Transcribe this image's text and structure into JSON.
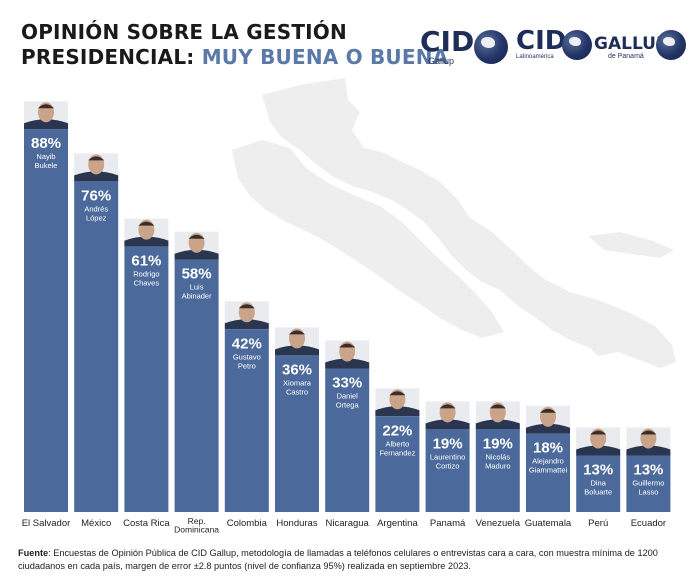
{
  "title": {
    "line1": "OPINIÓN SOBRE LA GESTIÓN",
    "line2_prefix": "PRESIDENCIAL:",
    "line2_accent": "MUY BUENA O BUENA"
  },
  "logos": {
    "cid_gallup": {
      "word": "CID",
      "sub": "Gallup"
    },
    "cid_latinoamerica": {
      "word": "CID",
      "sub": "Latinoamérica"
    },
    "gallup_panama": {
      "word": "GALLUP",
      "sub": "de Panamá"
    }
  },
  "colors": {
    "bar": "#4b6a9b",
    "bar_text": "#ffffff",
    "accent": "#5a79a8",
    "map": "#eeeeee",
    "axis_text": "#222222"
  },
  "chart_data": {
    "type": "bar",
    "categories": [
      "El Salvador",
      "México",
      "Costa Rica",
      "Rep. Dominicana",
      "Colombia",
      "Honduras",
      "Nicaragua",
      "Argentina",
      "Panamá",
      "Venezuela",
      "Guatemala",
      "Perú",
      "Ecuador"
    ],
    "values": [
      88,
      76,
      61,
      58,
      42,
      36,
      33,
      22,
      19,
      19,
      18,
      13,
      13
    ],
    "value_labels": [
      "88%",
      "76%",
      "61%",
      "58%",
      "42%",
      "36%",
      "33%",
      "22%",
      "19%",
      "19%",
      "18%",
      "13%",
      "13%"
    ],
    "leaders": [
      "Nayib Bukele",
      "Andrés López",
      "Rodrigo Chaves",
      "Luis Abinader",
      "Gustavo Petro",
      "Xiomara Castro",
      "Daniel Ortega",
      "Alberto Fernandez",
      "Laurentino Cortizo",
      "Nicolás Maduro",
      "Alejandro Giammattei",
      "Dina Boluarte",
      "Guillermo Lasso"
    ],
    "ylim": [
      0,
      100
    ],
    "grid": false,
    "xlabel": "",
    "ylabel": ""
  },
  "footnote": {
    "label": "Fuente",
    "text": ": Encuestas de Opinión Pública de CID Gallup, metodología de llamadas a teléfonos celulares o entrevistas cara a cara, con muestra mínima de 1200 ciudadanos en cada país, margen de error ±2.8 puntos (nivel de confianza 95%) realizada en septiembre 2023."
  }
}
